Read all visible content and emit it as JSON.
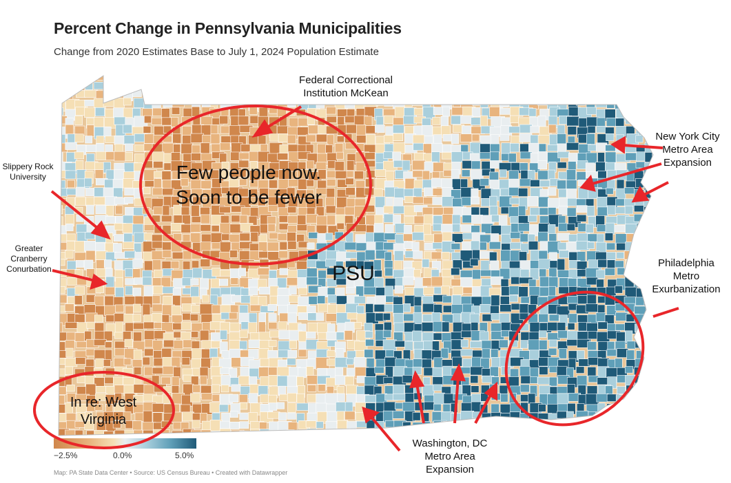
{
  "title": "Percent Change in Pennsylvania Municipalities",
  "subtitle": "Change from 2020 Estimates Base to July 1, 2024 Population Estimate",
  "footer": "Map: PA State Data Center • Source: US Census Bureau • Created with Datawrapper",
  "legend": {
    "min_label": "−2.5%",
    "mid_label": "0.0%",
    "max_label": "5.0%",
    "colors": [
      "#d0874c",
      "#e8b47e",
      "#f5dfb5",
      "#e9eef0",
      "#a9cfdc",
      "#5f9fb8",
      "#1f5a78"
    ]
  },
  "annotations": {
    "fci": "Federal Correctional Institution McKean",
    "few": "Few people now. Soon to be fewer",
    "slippery": "Slippery Rock University",
    "cranberry": "Greater Cranberry Conurbation",
    "psu": "PSU",
    "nyc": "New York City Metro Area Expansion",
    "philly": "Philadelphia Metro Exurbanization",
    "wv": "In re: West Virginia",
    "dc": "Washington, DC Metro Area Expansion"
  },
  "annotation_color": "#e8262a"
}
